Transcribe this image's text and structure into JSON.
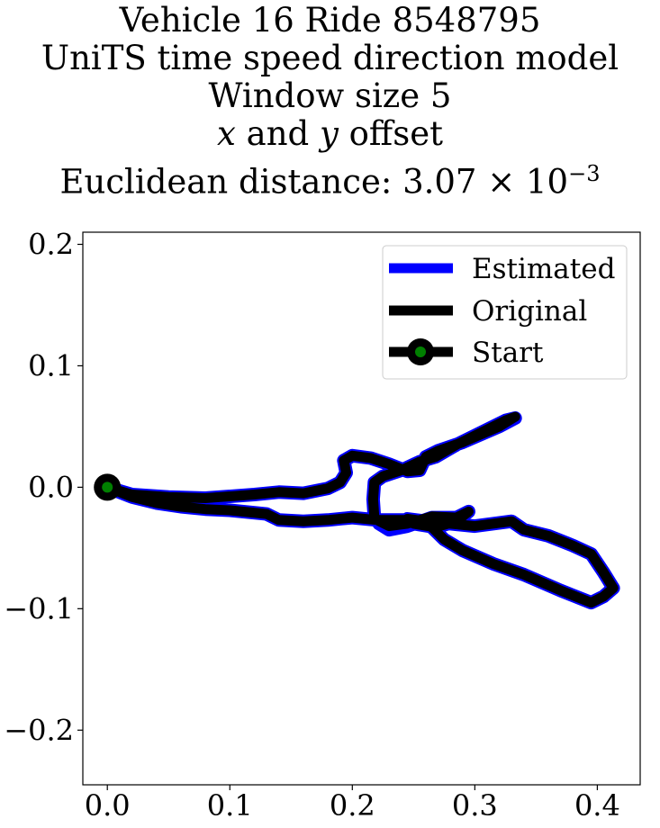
{
  "chart_data": {
    "type": "line",
    "title_lines": [
      "Vehicle 16 Ride 8548795",
      "UniTS time speed direction model",
      "Window size 5"
    ],
    "title_offset_line": {
      "x": "x",
      "and": "and",
      "y": "y",
      "rest": "offset"
    },
    "title_distance_line": {
      "prefix": "Euclidean distance: 3.07",
      "times": "×",
      "base": "10",
      "exponent": "−3"
    },
    "xlabel": "",
    "ylabel": "",
    "xlim": [
      -0.02,
      0.435
    ],
    "ylim": [
      -0.245,
      0.21
    ],
    "x_ticks": [
      {
        "value": 0.0,
        "label": "0.0"
      },
      {
        "value": 0.1,
        "label": "0.1"
      },
      {
        "value": 0.2,
        "label": "0.2"
      },
      {
        "value": 0.3,
        "label": "0.3"
      },
      {
        "value": 0.4,
        "label": "0.4"
      }
    ],
    "y_ticks": [
      {
        "value": 0.2,
        "label": "0.2"
      },
      {
        "value": 0.1,
        "label": "0.1"
      },
      {
        "value": 0.0,
        "label": "0.0"
      },
      {
        "value": -0.1,
        "label": "−0.1"
      },
      {
        "value": -0.2,
        "label": "−0.2"
      }
    ],
    "grid": false,
    "legend_position": "top-right",
    "series": [
      {
        "name": "Estimated",
        "color": "#0000ff",
        "points": [
          [
            0.0,
            0.0
          ],
          [
            0.02,
            -0.006
          ],
          [
            0.05,
            -0.008
          ],
          [
            0.08,
            -0.009
          ],
          [
            0.12,
            -0.006
          ],
          [
            0.14,
            -0.004
          ],
          [
            0.16,
            -0.005
          ],
          [
            0.18,
            -0.001
          ],
          [
            0.19,
            0.004
          ],
          [
            0.195,
            0.012
          ],
          [
            0.193,
            0.022
          ],
          [
            0.2,
            0.026
          ],
          [
            0.215,
            0.024
          ],
          [
            0.23,
            0.019
          ],
          [
            0.245,
            0.013
          ],
          [
            0.255,
            0.014
          ],
          [
            0.26,
            0.025
          ],
          [
            0.27,
            0.03
          ],
          [
            0.29,
            0.037
          ],
          [
            0.32,
            0.05
          ],
          [
            0.333,
            0.057
          ],
          [
            0.325,
            0.055
          ],
          [
            0.305,
            0.045
          ],
          [
            0.285,
            0.035
          ],
          [
            0.268,
            0.025
          ],
          [
            0.255,
            0.021
          ],
          [
            0.24,
            0.014
          ],
          [
            0.225,
            0.009
          ],
          [
            0.218,
            0.004
          ],
          [
            0.217,
            -0.01
          ],
          [
            0.218,
            -0.025
          ],
          [
            0.222,
            -0.03
          ],
          [
            0.23,
            -0.035
          ],
          [
            0.245,
            -0.032
          ],
          [
            0.265,
            -0.025
          ],
          [
            0.285,
            -0.025
          ],
          [
            0.295,
            -0.02
          ],
          [
            0.285,
            -0.028
          ],
          [
            0.268,
            -0.033
          ],
          [
            0.25,
            -0.03
          ],
          [
            0.245,
            -0.026
          ],
          [
            0.26,
            -0.028
          ],
          [
            0.28,
            -0.03
          ],
          [
            0.3,
            -0.032
          ],
          [
            0.33,
            -0.028
          ],
          [
            0.34,
            -0.035
          ],
          [
            0.36,
            -0.04
          ],
          [
            0.38,
            -0.048
          ],
          [
            0.395,
            -0.055
          ],
          [
            0.405,
            -0.07
          ],
          [
            0.413,
            -0.083
          ],
          [
            0.405,
            -0.09
          ],
          [
            0.395,
            -0.095
          ],
          [
            0.37,
            -0.085
          ],
          [
            0.34,
            -0.072
          ],
          [
            0.315,
            -0.063
          ],
          [
            0.29,
            -0.052
          ],
          [
            0.275,
            -0.043
          ],
          [
            0.268,
            -0.036
          ],
          [
            0.262,
            -0.03
          ],
          [
            0.245,
            -0.027
          ],
          [
            0.22,
            -0.027
          ],
          [
            0.2,
            -0.025
          ],
          [
            0.18,
            -0.027
          ],
          [
            0.16,
            -0.028
          ],
          [
            0.14,
            -0.027
          ],
          [
            0.13,
            -0.022
          ],
          [
            0.1,
            -0.019
          ],
          [
            0.08,
            -0.018
          ],
          [
            0.06,
            -0.016
          ],
          [
            0.04,
            -0.013
          ],
          [
            0.02,
            -0.008
          ],
          [
            0.0,
            0.0
          ]
        ]
      },
      {
        "name": "Original",
        "color": "#000000",
        "points": [
          [
            0.0,
            0.0
          ],
          [
            0.02,
            -0.006
          ],
          [
            0.05,
            -0.008
          ],
          [
            0.08,
            -0.009
          ],
          [
            0.12,
            -0.006
          ],
          [
            0.14,
            -0.004
          ],
          [
            0.16,
            -0.005
          ],
          [
            0.18,
            -0.001
          ],
          [
            0.19,
            0.004
          ],
          [
            0.195,
            0.012
          ],
          [
            0.193,
            0.022
          ],
          [
            0.2,
            0.026
          ],
          [
            0.215,
            0.024
          ],
          [
            0.23,
            0.019
          ],
          [
            0.245,
            0.013
          ],
          [
            0.255,
            0.014
          ],
          [
            0.26,
            0.025
          ],
          [
            0.27,
            0.03
          ],
          [
            0.29,
            0.037
          ],
          [
            0.32,
            0.05
          ],
          [
            0.333,
            0.058
          ],
          [
            0.325,
            0.055
          ],
          [
            0.305,
            0.045
          ],
          [
            0.285,
            0.035
          ],
          [
            0.268,
            0.025
          ],
          [
            0.255,
            0.021
          ],
          [
            0.24,
            0.014
          ],
          [
            0.225,
            0.009
          ],
          [
            0.218,
            0.004
          ],
          [
            0.217,
            -0.01
          ],
          [
            0.218,
            -0.025
          ],
          [
            0.222,
            -0.028
          ],
          [
            0.23,
            -0.032
          ],
          [
            0.245,
            -0.03
          ],
          [
            0.265,
            -0.024
          ],
          [
            0.285,
            -0.025
          ],
          [
            0.295,
            -0.02
          ],
          [
            0.285,
            -0.028
          ],
          [
            0.268,
            -0.033
          ],
          [
            0.25,
            -0.03
          ],
          [
            0.245,
            -0.026
          ],
          [
            0.26,
            -0.028
          ],
          [
            0.28,
            -0.03
          ],
          [
            0.3,
            -0.032
          ],
          [
            0.33,
            -0.028
          ],
          [
            0.34,
            -0.035
          ],
          [
            0.36,
            -0.04
          ],
          [
            0.38,
            -0.048
          ],
          [
            0.395,
            -0.055
          ],
          [
            0.405,
            -0.07
          ],
          [
            0.413,
            -0.083
          ],
          [
            0.405,
            -0.09
          ],
          [
            0.395,
            -0.095
          ],
          [
            0.37,
            -0.085
          ],
          [
            0.34,
            -0.072
          ],
          [
            0.315,
            -0.063
          ],
          [
            0.29,
            -0.052
          ],
          [
            0.275,
            -0.043
          ],
          [
            0.268,
            -0.036
          ],
          [
            0.262,
            -0.03
          ],
          [
            0.245,
            -0.027
          ],
          [
            0.22,
            -0.027
          ],
          [
            0.2,
            -0.025
          ],
          [
            0.18,
            -0.027
          ],
          [
            0.16,
            -0.028
          ],
          [
            0.14,
            -0.027
          ],
          [
            0.13,
            -0.022
          ],
          [
            0.1,
            -0.019
          ],
          [
            0.08,
            -0.018
          ],
          [
            0.06,
            -0.016
          ],
          [
            0.04,
            -0.013
          ],
          [
            0.02,
            -0.008
          ],
          [
            0.0,
            0.0
          ]
        ]
      }
    ],
    "start_point": {
      "name": "Start",
      "x": 0.0,
      "y": 0.0,
      "outer_color": "#000000",
      "inner_color": "#008000"
    }
  }
}
